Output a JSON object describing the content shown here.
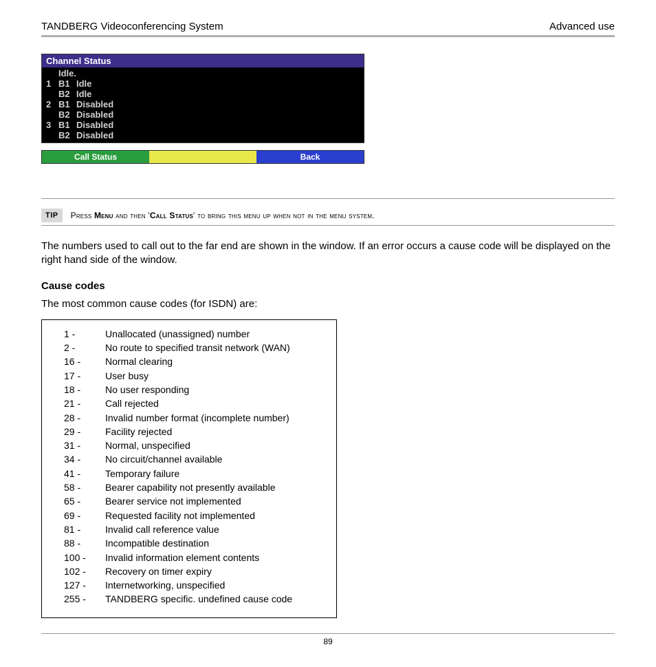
{
  "header": {
    "left": "TANDBERG Videoconferencing System",
    "right": "Advanced use"
  },
  "screenshot": {
    "channel_status_title": "Channel Status",
    "idle_label": "Idle.",
    "rows": [
      {
        "num": "1",
        "b": "B1",
        "state": "Idle"
      },
      {
        "num": "",
        "b": "B2",
        "state": "Idle"
      },
      {
        "num": "2",
        "b": "B1",
        "state": "Disabled"
      },
      {
        "num": "",
        "b": "B2",
        "state": "Disabled"
      },
      {
        "num": "3",
        "b": "B1",
        "state": "Disabled"
      },
      {
        "num": "",
        "b": "B2",
        "state": "Disabled"
      }
    ],
    "bar_green_label": "Call Status",
    "bar_yellow_label": "",
    "bar_blue_label": "Back",
    "colors": {
      "title_bg": "#3d2e8c",
      "box_bg": "#000000",
      "text": "#d0d0d0",
      "green": "#2a9d3e",
      "yellow": "#e8e84a",
      "blue": "#2a3ed0"
    }
  },
  "tip": {
    "badge": "TIP",
    "pre": "Press ",
    "menu": "Menu",
    "mid": " and then '",
    "call_status": "Call Status",
    "post": "' to bring this menu up when not in the menu system."
  },
  "body": {
    "para1": "The numbers used to call out to the far end are shown in the window. If an error occurs a cause code will be displayed on the right hand side of the window.",
    "cause_heading": "Cause codes",
    "cause_intro": "The most common cause codes (for ISDN) are:"
  },
  "codes": [
    {
      "n": "1 -",
      "d": "Unallocated (unassigned) number"
    },
    {
      "n": "2 -",
      "d": "No route to specified transit network (WAN)"
    },
    {
      "n": "16 -",
      "d": "Normal clearing"
    },
    {
      "n": "17 -",
      "d": "User busy"
    },
    {
      "n": "18 -",
      "d": "No user responding"
    },
    {
      "n": "21 -",
      "d": "Call rejected"
    },
    {
      "n": "28 -",
      "d": "Invalid number format (incomplete number)"
    },
    {
      "n": "29 -",
      "d": "Facility rejected"
    },
    {
      "n": "31 -",
      "d": "Normal, unspecified"
    },
    {
      "n": "34 -",
      "d": "No circuit/channel available"
    },
    {
      "n": "41 -",
      "d": "Temporary failure"
    },
    {
      "n": "58 -",
      "d": "Bearer capability not presently available"
    },
    {
      "n": "65 -",
      "d": "Bearer service not implemented"
    },
    {
      "n": "69 -",
      "d": "Requested facility not implemented"
    },
    {
      "n": "81 -",
      "d": "Invalid call reference value"
    },
    {
      "n": "88 -",
      "d": "Incompatible destination"
    },
    {
      "n": "100 -",
      "d": "Invalid information element contents"
    },
    {
      "n": "102 -",
      "d": "Recovery on timer expiry"
    },
    {
      "n": "127 -",
      "d": "Internetworking, unspecified"
    },
    {
      "n": " 255 -",
      "d": "TANDBERG specific. undefined cause code"
    }
  ],
  "page_number": "89"
}
